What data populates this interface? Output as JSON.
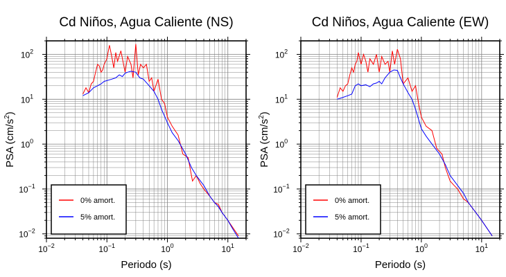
{
  "chart_data": [
    {
      "type": "line",
      "title": "Cd Niños, Agua Caliente (NS)",
      "xlabel": "Periodo (s)",
      "ylabel": "PSA (cm/s",
      "ylabel_sup": "2",
      "ylabel_close": ")",
      "x_scale": "log",
      "y_scale": "log",
      "xlim": [
        0.01,
        20
      ],
      "ylim": [
        0.008,
        200
      ],
      "x_ticks": [
        {
          "value": 0.01,
          "base": "10",
          "exp": "−2"
        },
        {
          "value": 0.1,
          "base": "10",
          "exp": "−1"
        },
        {
          "value": 1,
          "base": "10",
          "exp": "0"
        },
        {
          "value": 10,
          "base": "10",
          "exp": "1"
        }
      ],
      "y_ticks": [
        {
          "value": 0.01,
          "base": "10",
          "exp": "−2"
        },
        {
          "value": 0.1,
          "base": "10",
          "exp": "−1"
        },
        {
          "value": 1,
          "base": "10",
          "exp": "0"
        },
        {
          "value": 10,
          "base": "10",
          "exp": "1"
        },
        {
          "value": 100,
          "base": "10",
          "exp": "2"
        }
      ],
      "grid": true,
      "legend_position": "bottom-left",
      "series": [
        {
          "name": "0% amort.",
          "color": "#ff0000",
          "x": [
            0.04,
            0.045,
            0.05,
            0.055,
            0.06,
            0.065,
            0.07,
            0.075,
            0.08,
            0.085,
            0.09,
            0.1,
            0.11,
            0.12,
            0.13,
            0.14,
            0.15,
            0.17,
            0.2,
            0.22,
            0.25,
            0.27,
            0.3,
            0.33,
            0.36,
            0.4,
            0.45,
            0.5,
            0.55,
            0.6,
            0.7,
            0.8,
            0.9,
            1.0,
            1.2,
            1.5,
            1.8,
            2.2,
            2.6,
            3.0,
            3.5,
            4.0,
            5.0,
            6.0,
            7.0,
            8.0,
            10.0,
            12.0,
            15.0
          ],
          "values": [
            13,
            18,
            14,
            22,
            25,
            40,
            60,
            55,
            40,
            45,
            60,
            80,
            160,
            90,
            50,
            110,
            70,
            120,
            40,
            90,
            60,
            30,
            170,
            35,
            60,
            50,
            60,
            25,
            30,
            15,
            28,
            10,
            8,
            4,
            2.5,
            1.6,
            0.6,
            0.5,
            0.15,
            0.2,
            0.13,
            0.1,
            0.07,
            0.05,
            0.045,
            0.03,
            0.02,
            0.014,
            0.009
          ]
        },
        {
          "name": "5% amort.",
          "color": "#0000ff",
          "x": [
            0.04,
            0.05,
            0.06,
            0.07,
            0.08,
            0.09,
            0.1,
            0.12,
            0.14,
            0.16,
            0.18,
            0.2,
            0.22,
            0.25,
            0.3,
            0.35,
            0.4,
            0.5,
            0.6,
            0.7,
            0.8,
            1.0,
            1.2,
            1.5,
            2.0,
            2.5,
            3.0,
            4.0,
            5.0,
            6.0,
            7.0,
            8.0,
            10.0,
            12.0,
            15.0
          ],
          "values": [
            12,
            14,
            18,
            20,
            22,
            25,
            26,
            28,
            30,
            35,
            32,
            38,
            40,
            42,
            40,
            30,
            28,
            20,
            15,
            10,
            6,
            3,
            1.8,
            1.2,
            0.6,
            0.3,
            0.2,
            0.12,
            0.07,
            0.05,
            0.04,
            0.03,
            0.02,
            0.013,
            0.008
          ]
        }
      ]
    },
    {
      "type": "line",
      "title": "Cd Niños, Agua Caliente (EW)",
      "xlabel": "Periodo (s)",
      "ylabel": "PSA (cm/s",
      "ylabel_sup": "2",
      "ylabel_close": ")",
      "x_scale": "log",
      "y_scale": "log",
      "xlim": [
        0.01,
        20
      ],
      "ylim": [
        0.008,
        200
      ],
      "x_ticks": [
        {
          "value": 0.01,
          "base": "10",
          "exp": "−2"
        },
        {
          "value": 0.1,
          "base": "10",
          "exp": "−1"
        },
        {
          "value": 1,
          "base": "10",
          "exp": "0"
        },
        {
          "value": 10,
          "base": "10",
          "exp": "1"
        }
      ],
      "y_ticks": [
        {
          "value": 0.01,
          "base": "10",
          "exp": "−2"
        },
        {
          "value": 0.1,
          "base": "10",
          "exp": "−1"
        },
        {
          "value": 1,
          "base": "10",
          "exp": "0"
        },
        {
          "value": 10,
          "base": "10",
          "exp": "1"
        },
        {
          "value": 100,
          "base": "10",
          "exp": "2"
        }
      ],
      "grid": true,
      "legend_position": "bottom-left",
      "series": [
        {
          "name": "0% amort.",
          "color": "#ff0000",
          "x": [
            0.04,
            0.045,
            0.05,
            0.055,
            0.06,
            0.065,
            0.07,
            0.075,
            0.08,
            0.085,
            0.09,
            0.1,
            0.11,
            0.12,
            0.13,
            0.14,
            0.16,
            0.18,
            0.2,
            0.22,
            0.25,
            0.28,
            0.3,
            0.33,
            0.36,
            0.4,
            0.45,
            0.5,
            0.6,
            0.7,
            0.8,
            0.9,
            1.0,
            1.2,
            1.5,
            1.8,
            2.2,
            2.5,
            3.0,
            3.5,
            4.0,
            5.0,
            6.0,
            8.0,
            10.0,
            12.0,
            15.0
          ],
          "values": [
            11,
            18,
            15,
            20,
            22,
            35,
            50,
            40,
            60,
            70,
            110,
            60,
            100,
            70,
            40,
            80,
            60,
            100,
            40,
            90,
            60,
            70,
            40,
            120,
            60,
            130,
            80,
            22,
            30,
            15,
            20,
            8,
            4,
            2.5,
            2,
            0.8,
            0.6,
            0.3,
            0.15,
            0.12,
            0.1,
            0.06,
            0.05,
            0.03,
            0.02,
            0.014,
            0.009
          ]
        },
        {
          "name": "5% amort.",
          "color": "#0000ff",
          "x": [
            0.04,
            0.05,
            0.06,
            0.07,
            0.08,
            0.09,
            0.1,
            0.12,
            0.14,
            0.16,
            0.18,
            0.2,
            0.22,
            0.25,
            0.3,
            0.35,
            0.4,
            0.45,
            0.5,
            0.6,
            0.7,
            0.8,
            1.0,
            1.2,
            1.5,
            2.0,
            2.5,
            3.0,
            4.0,
            5.0,
            6.0,
            8.0,
            10.0,
            12.0,
            15.0
          ],
          "values": [
            10,
            11,
            12,
            13,
            20,
            22,
            20,
            21,
            19,
            22,
            23,
            25,
            22,
            30,
            40,
            45,
            44,
            30,
            22,
            14,
            10,
            6,
            2.2,
            1.5,
            1,
            0.6,
            0.35,
            0.2,
            0.12,
            0.08,
            0.05,
            0.03,
            0.02,
            0.014,
            0.009
          ]
        }
      ]
    }
  ]
}
